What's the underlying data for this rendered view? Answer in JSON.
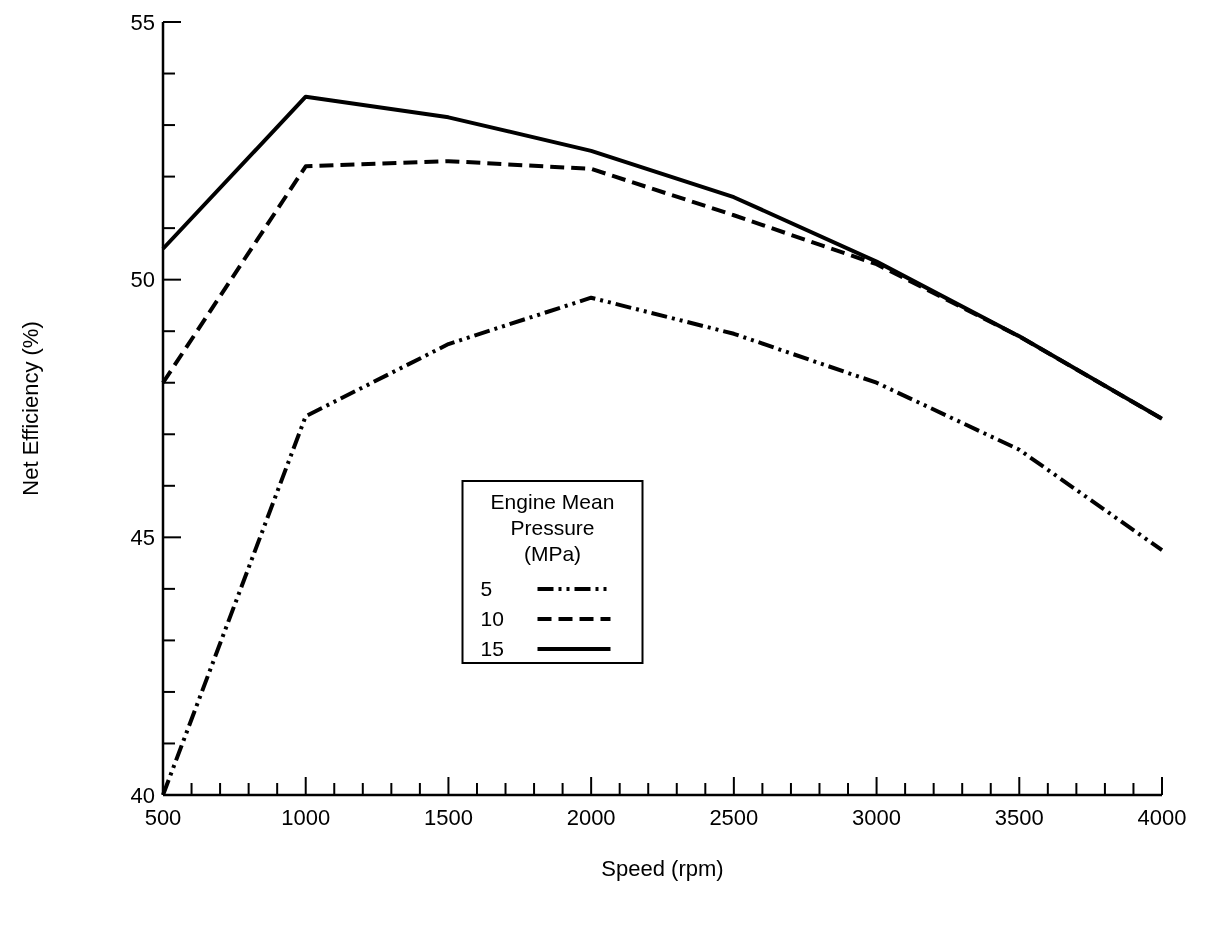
{
  "chart_data": {
    "type": "line",
    "xlabel": "Speed (rpm)",
    "ylabel": "Net Efficiency (%)",
    "legend_title": "Engine Mean Pressure (MPa)",
    "legend": "bottom",
    "grid": false,
    "marker": "none",
    "x": [
      500,
      1000,
      1500,
      2000,
      2500,
      3000,
      3500,
      4000
    ],
    "xlim": [
      500,
      4000
    ],
    "ylim": [
      40,
      55
    ],
    "xticks": [
      500,
      {
        "value": 600,
        "label": null
      },
      {
        "value": 700,
        "label": null
      },
      {
        "value": 800,
        "label": null
      },
      {
        "value": 900,
        "label": null
      },
      1000,
      {
        "value": 1100,
        "label": null
      },
      {
        "value": 1200,
        "label": null
      },
      {
        "value": 1300,
        "label": null
      },
      {
        "value": 1400,
        "label": null
      },
      1500,
      {
        "value": 1600,
        "label": null
      },
      {
        "value": 1700,
        "label": null
      },
      {
        "value": 1800,
        "label": null
      },
      {
        "value": 1900,
        "label": null
      },
      2000,
      {
        "value": 2100,
        "label": null
      },
      {
        "value": 2200,
        "label": null
      },
      {
        "value": 2300,
        "label": null
      },
      {
        "value": 2400,
        "label": null
      },
      2500,
      {
        "value": 2600,
        "label": null
      },
      {
        "value": 2700,
        "label": null
      },
      {
        "value": 2800,
        "label": null
      },
      {
        "value": 2900,
        "label": null
      },
      3000,
      {
        "value": 3100,
        "label": null
      },
      {
        "value": 3200,
        "label": null
      },
      {
        "value": 3300,
        "label": null
      },
      {
        "value": 3400,
        "label": null
      },
      3500,
      {
        "value": 3600,
        "label": null
      },
      {
        "value": 3700,
        "label": null
      },
      {
        "value": 3800,
        "label": null
      },
      {
        "value": 3900,
        "label": null
      },
      4000
    ],
    "yticks": [
      40,
      {
        "value": 41,
        "label": null
      },
      {
        "value": 42,
        "label": null
      },
      {
        "value": 43,
        "label": null
      },
      {
        "value": 44,
        "label": null
      },
      45,
      {
        "value": 46,
        "label": null
      },
      {
        "value": 47,
        "label": null
      },
      {
        "value": 48,
        "label": null
      },
      {
        "value": 49,
        "label": null
      },
      50,
      {
        "value": 51,
        "label": null
      },
      {
        "value": 52,
        "label": null
      },
      {
        "value": 53,
        "label": null
      },
      {
        "value": 54,
        "label": null
      },
      55
    ],
    "series": [
      {
        "name": "5",
        "color": "#000000",
        "line_style": "dotted",
        "values": [
          40.0,
          47.35,
          48.75,
          49.65,
          48.95,
          48.0,
          46.7,
          44.75
        ]
      },
      {
        "name": "10",
        "color": "#000000",
        "line_style": "dashed",
        "values": [
          48.0,
          52.2,
          52.3,
          52.15,
          51.25,
          50.3,
          48.9,
          47.3
        ]
      },
      {
        "name": "15",
        "color": "#000000",
        "line_style": "solid",
        "values": [
          50.6,
          53.55,
          53.15,
          52.5,
          51.6,
          50.35,
          48.9,
          47.3
        ]
      }
    ]
  }
}
